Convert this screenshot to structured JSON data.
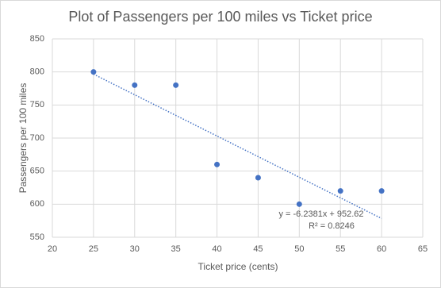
{
  "chart_data": {
    "type": "scatter",
    "title": "Plot of Passengers per 100 miles vs Ticket price",
    "x_label": "Ticket price (cents)",
    "y_label": "Passengers per 100 miles",
    "series": [
      {
        "name": "Passengers per 100 miles",
        "color": "#4472c4",
        "x": [
          25,
          30,
          35,
          40,
          45,
          50,
          55,
          60
        ],
        "values": [
          800,
          780,
          780,
          660,
          640,
          600,
          620,
          620
        ]
      }
    ],
    "trendline": {
      "slope": -6.2381,
      "intercept": 952.62,
      "equation": "y = -6.2381x + 952.62",
      "r_squared": "R² = 0.8246"
    },
    "xlim": [
      20,
      65
    ],
    "xticks": [
      20,
      25,
      30,
      35,
      40,
      45,
      50,
      55,
      60,
      65
    ],
    "ylim": [
      550,
      850
    ],
    "yticks": [
      550,
      600,
      650,
      700,
      750,
      800,
      850
    ],
    "grid": true
  }
}
